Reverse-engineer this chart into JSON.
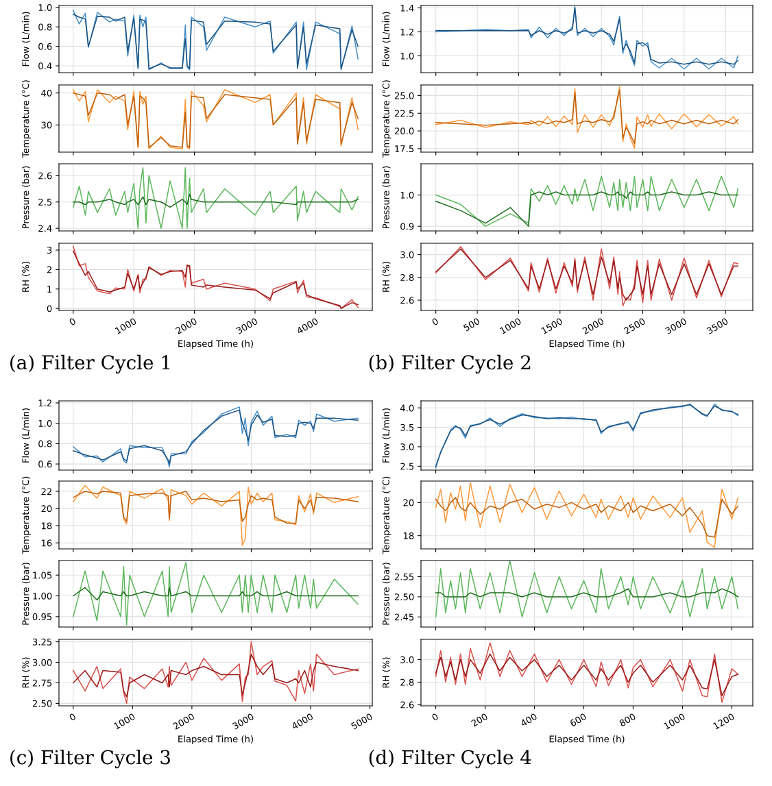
{
  "chart_data": [
    {
      "type": "line",
      "ylabel": "Flow (L/min)",
      "xlim": [
        -235,
        4935
      ],
      "xticks": [
        0,
        1000,
        2000,
        3000,
        4000
      ],
      "ylim": [
        0.33,
        1.02
      ],
      "yticks": [
        0.4,
        0.6,
        0.8,
        {
          "value": 1,
          "label": "1.0"
        }
      ],
      "grid": true,
      "tick_labels": "y",
      "x": [
        0,
        100,
        200,
        250,
        400,
        600,
        700,
        850,
        900,
        1000,
        1070,
        1100,
        1150,
        1200,
        1250,
        1450,
        1600,
        1800,
        1850,
        1880,
        1920,
        1950,
        2150,
        2200,
        2500,
        3000,
        3250,
        3300,
        3680,
        3700,
        3800,
        3850,
        4000,
        4400,
        4420,
        4600,
        4700
      ],
      "series": [
        {
          "color": "#4a90c8",
          "values": [
            0.97,
            0.83,
            0.94,
            0.59,
            0.95,
            0.85,
            0.88,
            0.86,
            0.5,
            0.92,
            0.37,
            0.92,
            0.8,
            0.9,
            0.36,
            0.43,
            0.37,
            0.37,
            0.82,
            0.39,
            0.36,
            0.9,
            0.8,
            0.56,
            0.9,
            0.8,
            0.86,
            0.53,
            0.85,
            0.37,
            0.85,
            0.36,
            0.85,
            0.73,
            0.36,
            0.81,
            0.47
          ]
        },
        {
          "color": "#1c5585",
          "values": [
            0.93,
            0.9,
            0.88,
            0.6,
            0.91,
            0.9,
            0.86,
            0.9,
            0.55,
            0.89,
            0.38,
            0.88,
            0.87,
            0.85,
            0.37,
            0.42,
            0.38,
            0.38,
            0.68,
            0.4,
            0.37,
            0.87,
            0.85,
            0.62,
            0.86,
            0.85,
            0.83,
            0.55,
            0.82,
            0.38,
            0.8,
            0.42,
            0.82,
            0.78,
            0.37,
            0.77,
            0.6
          ]
        }
      ]
    },
    {
      "type": "line",
      "ylabel": "Temperature (°C)",
      "xlim": [
        -235,
        4935
      ],
      "xticks": [
        0,
        1000,
        2000,
        3000,
        4000
      ],
      "ylim": [
        21.5,
        42.5
      ],
      "yticks": [
        30,
        40
      ],
      "grid": true,
      "tick_labels": "y",
      "x": [
        0,
        100,
        200,
        250,
        400,
        600,
        700,
        850,
        900,
        1000,
        1070,
        1100,
        1150,
        1200,
        1250,
        1450,
        1600,
        1800,
        1850,
        1880,
        1920,
        1950,
        2150,
        2200,
        2500,
        3000,
        3250,
        3300,
        3680,
        3700,
        3800,
        3850,
        4000,
        4400,
        4420,
        4600,
        4700
      ],
      "series": [
        {
          "color": "#ff9a3c",
          "values": [
            41,
            37.5,
            40.5,
            31,
            41,
            37,
            39,
            37.5,
            28.5,
            40.5,
            23,
            40.5,
            36.5,
            39,
            22.5,
            26.5,
            23,
            22.5,
            38,
            23,
            22.5,
            40.5,
            36,
            31,
            41,
            37,
            39.5,
            30,
            40,
            24.5,
            38.5,
            24,
            39.5,
            35,
            23.5,
            38.5,
            28.5
          ]
        },
        {
          "color": "#c0600a",
          "values": [
            40,
            39.5,
            39,
            33,
            40,
            39.5,
            38,
            39.5,
            30,
            39,
            23,
            39,
            38.5,
            37,
            23,
            26,
            23.5,
            23,
            34,
            23.5,
            23,
            39,
            38.5,
            32,
            39.5,
            38.5,
            38,
            30,
            38.5,
            24,
            37,
            25,
            38,
            37,
            24,
            37,
            32
          ]
        }
      ]
    },
    {
      "type": "line",
      "ylabel": "Pressure (bar)",
      "xlim": [
        -235,
        4935
      ],
      "xticks": [
        0,
        1000,
        2000,
        3000,
        4000
      ],
      "ylim": [
        2.39,
        2.645
      ],
      "yticks": [
        2.4,
        2.5,
        2.6
      ],
      "grid": true,
      "tick_labels": "y",
      "x": [
        0,
        100,
        200,
        250,
        400,
        600,
        700,
        850,
        900,
        1000,
        1070,
        1100,
        1150,
        1200,
        1250,
        1450,
        1600,
        1800,
        1850,
        1880,
        1920,
        1950,
        2150,
        2200,
        2500,
        3000,
        3250,
        3300,
        3680,
        3700,
        3800,
        3850,
        4000,
        4400,
        4420,
        4600,
        4700
      ],
      "series": [
        {
          "color": "#5cb85c",
          "values": [
            2.48,
            2.56,
            2.45,
            2.54,
            2.46,
            2.55,
            2.45,
            2.54,
            2.46,
            2.57,
            2.4,
            2.55,
            2.63,
            2.42,
            2.6,
            2.4,
            2.58,
            2.4,
            2.63,
            2.4,
            2.59,
            2.46,
            2.55,
            2.46,
            2.55,
            2.45,
            2.54,
            2.46,
            2.56,
            2.43,
            2.54,
            2.46,
            2.54,
            2.46,
            2.55,
            2.47,
            2.52
          ]
        },
        {
          "color": "#1f6e1f",
          "values": [
            2.5,
            2.5,
            2.49,
            2.5,
            2.5,
            2.51,
            2.5,
            2.49,
            2.5,
            2.51,
            2.49,
            2.5,
            2.52,
            2.49,
            2.51,
            2.5,
            2.48,
            2.51,
            2.5,
            2.49,
            2.53,
            2.51,
            2.5,
            2.5,
            2.5,
            2.5,
            2.5,
            2.5,
            2.49,
            2.5,
            2.5,
            2.5,
            2.5,
            2.5,
            2.5,
            2.5,
            2.51
          ]
        }
      ]
    },
    {
      "type": "line",
      "ylabel": "RH (%)",
      "xlabel": "Elapsed Time (h)",
      "annotations": [
        "(a) Filter Cycle 1"
      ],
      "xlim": [
        -235,
        4935
      ],
      "xticks": [
        0,
        1000,
        2000,
        3000,
        4000
      ],
      "ylim": [
        -0.1,
        3.35
      ],
      "yticks": [
        0,
        1,
        2,
        3
      ],
      "grid": true,
      "x": [
        0,
        100,
        200,
        250,
        400,
        600,
        700,
        850,
        900,
        1000,
        1070,
        1100,
        1150,
        1200,
        1250,
        1450,
        1600,
        1800,
        1850,
        1880,
        1920,
        1950,
        2150,
        2200,
        2500,
        3000,
        3250,
        3300,
        3680,
        3700,
        3800,
        3850,
        4000,
        4400,
        4420,
        4600,
        4700
      ],
      "series": [
        {
          "color": "#d9534f",
          "values": [
            3.2,
            2.2,
            2.3,
            1.6,
            0.9,
            0.75,
            1.05,
            1.0,
            2.0,
            0.9,
            1.75,
            0.8,
            1.5,
            1.5,
            2.15,
            1.7,
            1.95,
            1.9,
            1.1,
            2.25,
            2.1,
            1.3,
            1.5,
            1.0,
            1.3,
            1.0,
            0.4,
            1.0,
            1.4,
            0.8,
            1.45,
            0.6,
            0.55,
            0.1,
            0.0,
            0.45,
            0.05
          ]
        },
        {
          "color": "#9b1b1b",
          "values": [
            2.95,
            2.3,
            1.7,
            1.9,
            1.0,
            0.85,
            0.95,
            1.1,
            1.8,
            1.0,
            1.7,
            1.0,
            1.3,
            1.6,
            2.1,
            1.75,
            1.9,
            1.95,
            1.6,
            2.2,
            2.2,
            1.2,
            1.1,
            1.2,
            1.1,
            0.95,
            0.5,
            0.8,
            1.35,
            1.0,
            1.3,
            0.7,
            0.5,
            0.15,
            0.0,
            0.3,
            0.2
          ]
        }
      ]
    },
    {
      "type": "line",
      "ylabel": "Flow (L/min)",
      "xlim": [
        -180,
        3830
      ],
      "xticks": [
        0,
        500,
        1000,
        1500,
        2000,
        2500,
        3000,
        3500
      ],
      "ylim": [
        0.86,
        1.42
      ],
      "yticks": [
        {
          "value": 1,
          "label": "1.0"
        },
        1.2,
        1.4
      ],
      "grid": true,
      "tick_labels": "y",
      "x": [
        0,
        300,
        600,
        900,
        1120,
        1150,
        1250,
        1350,
        1450,
        1550,
        1650,
        1680,
        1710,
        1800,
        1900,
        2000,
        2100,
        2150,
        2200,
        2220,
        2260,
        2300,
        2350,
        2400,
        2430,
        2500,
        2560,
        2600,
        2700,
        2850,
        3000,
        3150,
        3300,
        3450,
        3600,
        3650
      ],
      "series": [
        {
          "color": "#4a90c8",
          "values": [
            1.2,
            1.21,
            1.22,
            1.21,
            1.22,
            1.15,
            1.24,
            1.15,
            1.23,
            1.17,
            1.24,
            1.41,
            1.17,
            1.23,
            1.16,
            1.23,
            1.16,
            1.09,
            1.27,
            1.33,
            1.02,
            1.13,
            1.01,
            0.92,
            1.13,
            1.08,
            1.11,
            0.95,
            0.9,
            0.98,
            0.89,
            0.98,
            0.89,
            0.98,
            0.9,
            1.0
          ]
        },
        {
          "color": "#1c5585",
          "values": [
            1.21,
            1.21,
            1.21,
            1.21,
            1.21,
            1.17,
            1.21,
            1.18,
            1.21,
            1.19,
            1.22,
            1.4,
            1.19,
            1.21,
            1.19,
            1.21,
            1.18,
            1.12,
            1.25,
            1.31,
            1.05,
            1.1,
            1.04,
            0.94,
            1.1,
            1.11,
            1.08,
            0.97,
            0.94,
            0.95,
            0.93,
            0.95,
            0.93,
            0.95,
            0.93,
            0.96
          ]
        }
      ]
    },
    {
      "type": "line",
      "ylabel": "Temperature (°C)",
      "xlim": [
        -180,
        3830
      ],
      "xticks": [
        0,
        500,
        1000,
        1500,
        2000,
        2500,
        3000,
        3500
      ],
      "ylim": [
        17.0,
        26.5
      ],
      "yticks": [
        17.5,
        {
          "value": 20,
          "label": "20.0"
        },
        22.5,
        {
          "value": 25,
          "label": "25.0"
        }
      ],
      "grid": true,
      "tick_labels": "y",
      "x": [
        0,
        300,
        600,
        900,
        1120,
        1150,
        1250,
        1350,
        1450,
        1550,
        1650,
        1680,
        1710,
        1800,
        1900,
        2000,
        2100,
        2150,
        2200,
        2220,
        2260,
        2300,
        2350,
        2400,
        2430,
        2500,
        2560,
        2600,
        2700,
        2850,
        3000,
        3150,
        3300,
        3450,
        3600,
        3650
      ],
      "series": [
        {
          "color": "#ff9a3c",
          "values": [
            20.9,
            21.5,
            20.5,
            21.3,
            20.9,
            21.5,
            20.7,
            22.0,
            20.6,
            22.1,
            20.9,
            26.0,
            19.8,
            22.3,
            20.5,
            22.3,
            20.7,
            22.3,
            24.5,
            26.3,
            18.5,
            21.0,
            19.0,
            17.5,
            22.0,
            20.5,
            22.3,
            20.6,
            22.4,
            20.3,
            22.4,
            20.6,
            22.3,
            20.7,
            22.0,
            21.0
          ]
        },
        {
          "color": "#c0600a",
          "values": [
            21.2,
            21.0,
            20.8,
            21.0,
            21.2,
            21.0,
            21.4,
            21.0,
            21.4,
            21.2,
            21.6,
            25.5,
            21.0,
            21.4,
            21.2,
            21.6,
            21.3,
            21.8,
            25,
            25.8,
            19,
            20.5,
            19.5,
            18.2,
            21.0,
            21.3,
            21.0,
            21.5,
            21.0,
            21.5,
            21.0,
            21.5,
            21.0,
            21.5,
            21.0,
            21.6
          ]
        }
      ]
    },
    {
      "type": "line",
      "ylabel": "Pressure (bar)",
      "xlim": [
        -180,
        3830
      ],
      "xticks": [
        0,
        500,
        1000,
        1500,
        2000,
        2500,
        3000,
        3500
      ],
      "ylim": [
        0.885,
        1.1
      ],
      "yticks": [
        0.9,
        {
          "value": 1,
          "label": "1.0"
        }
      ],
      "grid": true,
      "tick_labels": "y",
      "x": [
        0,
        300,
        600,
        900,
        1120,
        1150,
        1250,
        1350,
        1450,
        1550,
        1650,
        1680,
        1710,
        1800,
        1900,
        2000,
        2100,
        2150,
        2200,
        2220,
        2260,
        2300,
        2350,
        2400,
        2430,
        2500,
        2560,
        2600,
        2700,
        2850,
        3000,
        3150,
        3300,
        3450,
        3600,
        3650
      ],
      "series": [
        {
          "color": "#5cb85c",
          "values": [
            1.0,
            0.97,
            0.9,
            0.94,
            0.91,
            1.02,
            0.98,
            1.03,
            0.97,
            1.03,
            0.97,
            1.02,
            0.98,
            1.05,
            0.95,
            1.06,
            0.96,
            1.04,
            0.95,
            1.05,
            0.96,
            1.04,
            0.95,
            1.06,
            0.96,
            1.05,
            0.95,
            1.06,
            0.95,
            1.05,
            0.96,
            1.05,
            0.95,
            1.06,
            0.96,
            1.02
          ]
        },
        {
          "color": "#1f6e1f",
          "values": [
            0.98,
            0.95,
            0.91,
            0.96,
            0.9,
            1.0,
            1.01,
            1.0,
            1.01,
            1.0,
            1.0,
            1.0,
            1.0,
            1.0,
            1.0,
            1.01,
            1.0,
            1.0,
            1.01,
            1.0,
            1.0,
            0.99,
            1.01,
            1.0,
            1.0,
            1.0,
            1.01,
            1.0,
            1.0,
            1.01,
            1.0,
            1.0,
            1.01,
            1.0,
            1.0,
            1.0
          ]
        }
      ]
    },
    {
      "type": "line",
      "ylabel": "RH (%)",
      "xlabel": "Elapsed Time (h)",
      "annotations": [
        "(b) Filter Cycle 2"
      ],
      "xlim": [
        -180,
        3830
      ],
      "xticks": [
        0,
        500,
        1000,
        1500,
        2000,
        2500,
        3000,
        3500
      ],
      "ylim": [
        2.51,
        3.1
      ],
      "yticks": [
        2.6,
        2.8,
        {
          "value": 3,
          "label": "3.0"
        }
      ],
      "grid": true,
      "x": [
        0,
        300,
        600,
        900,
        1120,
        1150,
        1250,
        1350,
        1450,
        1550,
        1650,
        1680,
        1710,
        1800,
        1900,
        2000,
        2100,
        2150,
        2200,
        2220,
        2260,
        2300,
        2350,
        2400,
        2430,
        2500,
        2560,
        2600,
        2700,
        2850,
        3000,
        3150,
        3300,
        3450,
        3600,
        3650
      ],
      "series": [
        {
          "color": "#d9534f",
          "values": [
            2.84,
            3.07,
            2.78,
            2.97,
            2.68,
            2.93,
            2.67,
            2.97,
            2.66,
            2.93,
            2.72,
            2.97,
            2.67,
            2.98,
            2.6,
            3.05,
            2.7,
            2.98,
            2.65,
            2.85,
            2.55,
            2.62,
            2.6,
            2.75,
            2.95,
            2.58,
            2.95,
            2.6,
            2.96,
            2.6,
            2.97,
            2.62,
            2.95,
            2.63,
            2.93,
            2.92
          ]
        },
        {
          "color": "#9b1b1b",
          "values": [
            2.85,
            3.05,
            2.8,
            2.95,
            2.7,
            2.9,
            2.7,
            2.95,
            2.7,
            2.9,
            2.75,
            2.95,
            2.7,
            2.95,
            2.65,
            2.98,
            2.75,
            2.95,
            2.7,
            2.8,
            2.65,
            2.6,
            2.65,
            2.7,
            2.9,
            2.65,
            2.9,
            2.65,
            2.92,
            2.65,
            2.92,
            2.65,
            2.92,
            2.65,
            2.9,
            2.9
          ]
        }
      ]
    },
    {
      "type": "line",
      "ylabel": "Flow (L/min)",
      "xlim": [
        -240,
        5040
      ],
      "xticks": [
        0,
        1000,
        2000,
        3000,
        4000,
        5000
      ],
      "ylim": [
        0.54,
        1.22
      ],
      "yticks": [
        0.6,
        0.8,
        {
          "value": 1,
          "label": "1.0"
        },
        1.2
      ],
      "grid": true,
      "tick_labels": "y",
      "x": [
        0,
        200,
        400,
        500,
        800,
        850,
        900,
        950,
        1200,
        1500,
        1600,
        1620,
        1650,
        1900,
        2000,
        2200,
        2500,
        2800,
        2850,
        2900,
        2950,
        3000,
        3100,
        3200,
        3350,
        3400,
        3600,
        3750,
        3800,
        3900,
        4000,
        4050,
        4100,
        4400,
        4800
      ],
      "series": [
        {
          "color": "#4a90c8",
          "values": [
            0.77,
            0.67,
            0.68,
            0.62,
            0.75,
            0.63,
            0.61,
            0.78,
            0.76,
            0.76,
            0.62,
            0.57,
            0.7,
            0.7,
            0.82,
            0.91,
            1.09,
            1.16,
            0.9,
            1.05,
            0.78,
            1.01,
            1.12,
            0.98,
            1.07,
            0.86,
            0.89,
            0.86,
            1.03,
            0.98,
            1.02,
            0.92,
            1.09,
            1.02,
            1.05
          ]
        },
        {
          "color": "#1c5585",
          "values": [
            0.73,
            0.69,
            0.66,
            0.64,
            0.72,
            0.65,
            0.63,
            0.75,
            0.78,
            0.73,
            0.64,
            0.6,
            0.68,
            0.72,
            0.8,
            0.93,
            1.07,
            1.13,
            1.0,
            0.93,
            0.83,
            0.98,
            1.08,
            1.01,
            1.04,
            0.88,
            0.87,
            0.88,
            1.0,
            1.01,
            1.0,
            0.95,
            1.05,
            1.05,
            1.03
          ]
        }
      ]
    },
    {
      "type": "line",
      "ylabel": "Temperature (°C)",
      "xlim": [
        -240,
        5040
      ],
      "xticks": [
        0,
        1000,
        2000,
        3000,
        4000,
        5000
      ],
      "ylim": [
        15.3,
        23.2
      ],
      "yticks": [
        16,
        18,
        20,
        22
      ],
      "grid": true,
      "tick_labels": "y",
      "x": [
        0,
        200,
        400,
        500,
        800,
        850,
        900,
        950,
        1200,
        1500,
        1600,
        1620,
        1650,
        1900,
        2000,
        2200,
        2500,
        2800,
        2850,
        2900,
        2950,
        3000,
        3100,
        3200,
        3350,
        3400,
        3600,
        3750,
        3800,
        3900,
        4000,
        4050,
        4100,
        4400,
        4800
      ],
      "series": [
        {
          "color": "#ff9a3c",
          "values": [
            20.8,
            22.7,
            21.2,
            22.5,
            21.5,
            18.8,
            18.2,
            22.0,
            21.2,
            22.3,
            21.0,
            18.6,
            22.2,
            21.5,
            20.5,
            21.8,
            20.3,
            22.0,
            15.7,
            16.5,
            22.5,
            20.5,
            21.8,
            20.8,
            21.8,
            18.7,
            18.5,
            18.1,
            21.5,
            19.6,
            21.7,
            19.4,
            21.8,
            20.7,
            21.4
          ]
        },
        {
          "color": "#c0600a",
          "values": [
            21.3,
            22.0,
            21.7,
            22.0,
            21.8,
            19,
            18.5,
            21.5,
            21.7,
            21.8,
            21.5,
            18.8,
            21.5,
            22.0,
            21.0,
            21.2,
            20.8,
            21.0,
            18.5,
            19,
            20.5,
            21.5,
            21.0,
            21.2,
            21.0,
            19.0,
            18.3,
            18.3,
            21.0,
            20.0,
            21.0,
            19.7,
            21.3,
            21.2,
            20.8
          ]
        }
      ]
    },
    {
      "type": "line",
      "ylabel": "Pressure (bar)",
      "xlim": [
        -240,
        5040
      ],
      "xticks": [
        0,
        1000,
        2000,
        3000,
        4000,
        5000
      ],
      "ylim": [
        0.925,
        1.085
      ],
      "yticks": [
        {
          "value": 0.95,
          "label": "0.95"
        },
        {
          "value": 1.0,
          "label": "1.00"
        },
        {
          "value": 1.05,
          "label": "1.05"
        }
      ],
      "grid": true,
      "tick_labels": "y",
      "x": [
        0,
        200,
        400,
        500,
        800,
        850,
        900,
        950,
        1200,
        1500,
        1600,
        1620,
        1650,
        1900,
        2000,
        2200,
        2500,
        2800,
        2850,
        2900,
        2950,
        3000,
        3100,
        3200,
        3350,
        3400,
        3600,
        3750,
        3800,
        3900,
        4000,
        4050,
        4100,
        4400,
        4800
      ],
      "series": [
        {
          "color": "#5cb85c",
          "values": [
            0.95,
            1.06,
            0.94,
            1.06,
            0.95,
            1.07,
            0.93,
            1.05,
            0.95,
            1.06,
            0.95,
            1.07,
            0.96,
            1.08,
            0.96,
            1.05,
            0.96,
            1.05,
            0.96,
            1.05,
            0.96,
            1.05,
            0.96,
            1.05,
            0.96,
            1.05,
            0.96,
            1.05,
            0.97,
            1.05,
            0.97,
            1.04,
            0.97,
            1.04,
            0.98
          ]
        },
        {
          "color": "#1f6e1f",
          "values": [
            1.0,
            1.02,
            0.99,
            1.01,
            1.0,
            1.01,
            1.0,
            1.0,
            1.01,
            1.0,
            1.0,
            1.02,
            1.0,
            1.01,
            1.0,
            1.0,
            1.0,
            1.0,
            1.01,
            1.0,
            1.0,
            1.0,
            1.01,
            1.0,
            1.0,
            1.0,
            1.01,
            1.0,
            1.0,
            1.0,
            1.0,
            1.0,
            1.0,
            1.0,
            1.0
          ]
        }
      ]
    },
    {
      "type": "line",
      "ylabel": "RH (%)",
      "xlabel": "Elapsed Time (h)",
      "annotations": [
        "(c) Filter Cycle 3"
      ],
      "xlim": [
        -240,
        5040
      ],
      "xticks": [
        0,
        1000,
        2000,
        3000,
        4000,
        5000
      ],
      "ylim": [
        2.47,
        3.28
      ],
      "yticks": [
        {
          "value": 2.5,
          "label": "2.50"
        },
        {
          "value": 2.75,
          "label": "2.75"
        },
        {
          "value": 3.0,
          "label": "3.00"
        },
        {
          "value": 3.25,
          "label": "3.25"
        }
      ],
      "grid": true,
      "x": [
        0,
        200,
        400,
        500,
        800,
        850,
        900,
        950,
        1200,
        1500,
        1600,
        1620,
        1650,
        1900,
        2000,
        2200,
        2500,
        2800,
        2850,
        2900,
        2950,
        3000,
        3100,
        3200,
        3350,
        3400,
        3600,
        3750,
        3800,
        3900,
        4000,
        4050,
        4100,
        4400,
        4800
      ],
      "series": [
        {
          "color": "#d9534f",
          "values": [
            2.9,
            2.65,
            2.95,
            2.68,
            2.92,
            2.63,
            2.5,
            2.82,
            2.68,
            2.92,
            2.7,
            2.95,
            2.72,
            3.0,
            2.78,
            3.05,
            2.78,
            2.98,
            2.52,
            2.82,
            2.85,
            3.25,
            2.85,
            2.95,
            3.02,
            2.77,
            2.72,
            2.53,
            2.9,
            2.62,
            2.98,
            2.65,
            3.1,
            2.85,
            2.92
          ]
        },
        {
          "color": "#9b1b1b",
          "values": [
            2.75,
            2.9,
            2.7,
            2.9,
            2.88,
            2.65,
            2.58,
            2.75,
            2.85,
            2.75,
            2.85,
            2.7,
            2.9,
            2.85,
            2.9,
            2.95,
            2.85,
            2.85,
            2.6,
            2.75,
            2.9,
            3.1,
            2.95,
            2.85,
            2.98,
            2.8,
            2.75,
            2.8,
            2.75,
            2.9,
            2.7,
            2.9,
            3.0,
            2.95,
            2.9
          ]
        }
      ]
    },
    {
      "type": "line",
      "ylabel": "Flow (L/min)",
      "xlim": [
        -60,
        1285
      ],
      "xticks": [
        0,
        200,
        400,
        600,
        800,
        1000,
        1200
      ],
      "ylim": [
        2.4,
        4.18
      ],
      "yticks": [
        2.5,
        {
          "value": 3,
          "label": "3.0"
        },
        3.5,
        {
          "value": 4,
          "label": "4.0"
        }
      ],
      "grid": true,
      "tick_labels": "y",
      "x": [
        0,
        20,
        40,
        60,
        80,
        100,
        120,
        140,
        180,
        220,
        260,
        300,
        350,
        400,
        450,
        500,
        550,
        600,
        650,
        670,
        700,
        750,
        780,
        800,
        830,
        880,
        950,
        1000,
        1030,
        1080,
        1100,
        1130,
        1160,
        1200,
        1225
      ],
      "series": [
        {
          "color": "#4a90c8",
          "values": [
            2.45,
            2.88,
            3.12,
            3.43,
            3.55,
            3.45,
            3.22,
            3.55,
            3.58,
            3.74,
            3.52,
            3.72,
            3.85,
            3.75,
            3.74,
            3.72,
            3.76,
            3.7,
            3.7,
            3.34,
            3.53,
            3.58,
            3.65,
            3.4,
            3.88,
            3.92,
            4.02,
            4.03,
            4.1,
            3.83,
            3.78,
            4.1,
            3.93,
            3.92,
            3.8
          ]
        },
        {
          "color": "#1c5585",
          "values": [
            2.5,
            2.85,
            3.15,
            3.4,
            3.52,
            3.48,
            3.28,
            3.52,
            3.6,
            3.7,
            3.58,
            3.7,
            3.82,
            3.78,
            3.72,
            3.75,
            3.72,
            3.72,
            3.68,
            3.38,
            3.5,
            3.6,
            3.62,
            3.45,
            3.85,
            3.95,
            4.0,
            4.05,
            4.08,
            3.85,
            3.8,
            4.05,
            3.95,
            3.9,
            3.83
          ]
        }
      ]
    },
    {
      "type": "line",
      "ylabel": "Temperature (°C)",
      "xlim": [
        -60,
        1285
      ],
      "xticks": [
        0,
        200,
        400,
        600,
        800,
        1000,
        1200
      ],
      "ylim": [
        17.2,
        21.3
      ],
      "yticks": [
        18,
        20
      ],
      "grid": true,
      "tick_labels": "y",
      "x": [
        0,
        20,
        40,
        60,
        80,
        100,
        120,
        140,
        180,
        220,
        260,
        300,
        350,
        400,
        450,
        500,
        550,
        600,
        650,
        670,
        700,
        750,
        780,
        800,
        830,
        880,
        950,
        1000,
        1030,
        1080,
        1100,
        1130,
        1160,
        1200,
        1225
      ],
      "series": [
        {
          "color": "#ff9a3c",
          "values": [
            19.7,
            20.8,
            18.8,
            20.6,
            19.6,
            21.0,
            18.9,
            21.2,
            18.5,
            21.0,
            18.8,
            21.1,
            19.4,
            20.9,
            19.0,
            20.7,
            19.2,
            20.5,
            19.1,
            20.2,
            19.0,
            20.4,
            19.1,
            20.3,
            19.0,
            20.4,
            19.1,
            20.3,
            18.2,
            19.5,
            17.6,
            17.3,
            20.8,
            19.0,
            20.3
          ]
        },
        {
          "color": "#c0600a",
          "values": [
            20.2,
            19.8,
            19.5,
            20.0,
            20.3,
            19.7,
            19.5,
            20.0,
            19.3,
            19.8,
            19.6,
            20.0,
            20.2,
            19.6,
            19.9,
            19.7,
            20.0,
            19.6,
            19.9,
            19.4,
            19.8,
            19.5,
            20.0,
            19.4,
            19.8,
            19.5,
            19.9,
            19.2,
            19.7,
            18.7,
            18.0,
            17.9,
            20.2,
            19.3,
            19.8
          ]
        }
      ]
    },
    {
      "type": "line",
      "ylabel": "Pressure (bar)",
      "xlim": [
        -60,
        1285
      ],
      "xticks": [
        0,
        200,
        400,
        600,
        800,
        1000,
        1200
      ],
      "ylim": [
        2.425,
        2.59
      ],
      "yticks": [
        2.45,
        {
          "value": 2.5,
          "label": "2.50"
        },
        2.55
      ],
      "grid": true,
      "tick_labels": "y",
      "x": [
        0,
        20,
        40,
        60,
        80,
        100,
        120,
        140,
        180,
        220,
        260,
        300,
        350,
        400,
        450,
        500,
        550,
        600,
        650,
        670,
        700,
        750,
        780,
        800,
        830,
        880,
        950,
        1000,
        1030,
        1080,
        1100,
        1130,
        1160,
        1200,
        1225
      ],
      "series": [
        {
          "color": "#5cb85c",
          "values": [
            2.45,
            2.57,
            2.46,
            2.54,
            2.47,
            2.56,
            2.46,
            2.57,
            2.47,
            2.56,
            2.46,
            2.59,
            2.45,
            2.56,
            2.46,
            2.55,
            2.47,
            2.54,
            2.46,
            2.57,
            2.47,
            2.55,
            2.48,
            2.55,
            2.47,
            2.55,
            2.46,
            2.54,
            2.45,
            2.57,
            2.47,
            2.55,
            2.47,
            2.55,
            2.47
          ]
        },
        {
          "color": "#1f6e1f",
          "values": [
            2.51,
            2.51,
            2.5,
            2.5,
            2.5,
            2.5,
            2.5,
            2.51,
            2.5,
            2.51,
            2.51,
            2.51,
            2.5,
            2.51,
            2.5,
            2.5,
            2.5,
            2.51,
            2.5,
            2.5,
            2.5,
            2.51,
            2.52,
            2.5,
            2.5,
            2.5,
            2.51,
            2.5,
            2.5,
            2.51,
            2.51,
            2.51,
            2.52,
            2.51,
            2.5
          ]
        }
      ]
    },
    {
      "type": "line",
      "ylabel": "RH (%)",
      "xlabel": "Elapsed Time (h)",
      "annotations": [
        "(d) Filter Cycle 4"
      ],
      "xlim": [
        -60,
        1285
      ],
      "xticks": [
        0,
        200,
        400,
        600,
        800,
        1000,
        1200
      ],
      "ylim": [
        2.59,
        3.18
      ],
      "yticks": [
        2.6,
        2.8,
        {
          "value": 3,
          "label": "3.0"
        }
      ],
      "grid": true,
      "x": [
        0,
        20,
        40,
        60,
        80,
        100,
        120,
        140,
        180,
        220,
        260,
        300,
        350,
        400,
        450,
        500,
        550,
        600,
        650,
        670,
        700,
        750,
        780,
        800,
        830,
        880,
        950,
        1000,
        1030,
        1080,
        1100,
        1130,
        1160,
        1200,
        1225
      ],
      "series": [
        {
          "color": "#d9534f",
          "values": [
            2.85,
            3.08,
            2.8,
            3.02,
            2.78,
            3.05,
            2.78,
            3.1,
            2.82,
            3.15,
            2.85,
            3.08,
            2.85,
            3.05,
            2.8,
            3.0,
            2.78,
            3.0,
            2.76,
            2.98,
            2.77,
            3.0,
            2.75,
            2.93,
            3.0,
            2.76,
            3.0,
            2.72,
            3.0,
            2.68,
            2.67,
            3.05,
            2.62,
            2.92,
            2.87
          ]
        },
        {
          "color": "#9b1b1b",
          "values": [
            2.88,
            3.02,
            2.85,
            2.98,
            2.82,
            3.0,
            2.85,
            3.0,
            2.88,
            3.05,
            2.9,
            3.02,
            2.9,
            3.0,
            2.85,
            2.95,
            2.82,
            2.95,
            2.82,
            2.92,
            2.82,
            2.95,
            2.8,
            2.88,
            2.95,
            2.8,
            2.95,
            2.82,
            2.95,
            2.75,
            2.74,
            3.0,
            2.68,
            2.85,
            2.87
          ]
        }
      ]
    }
  ]
}
